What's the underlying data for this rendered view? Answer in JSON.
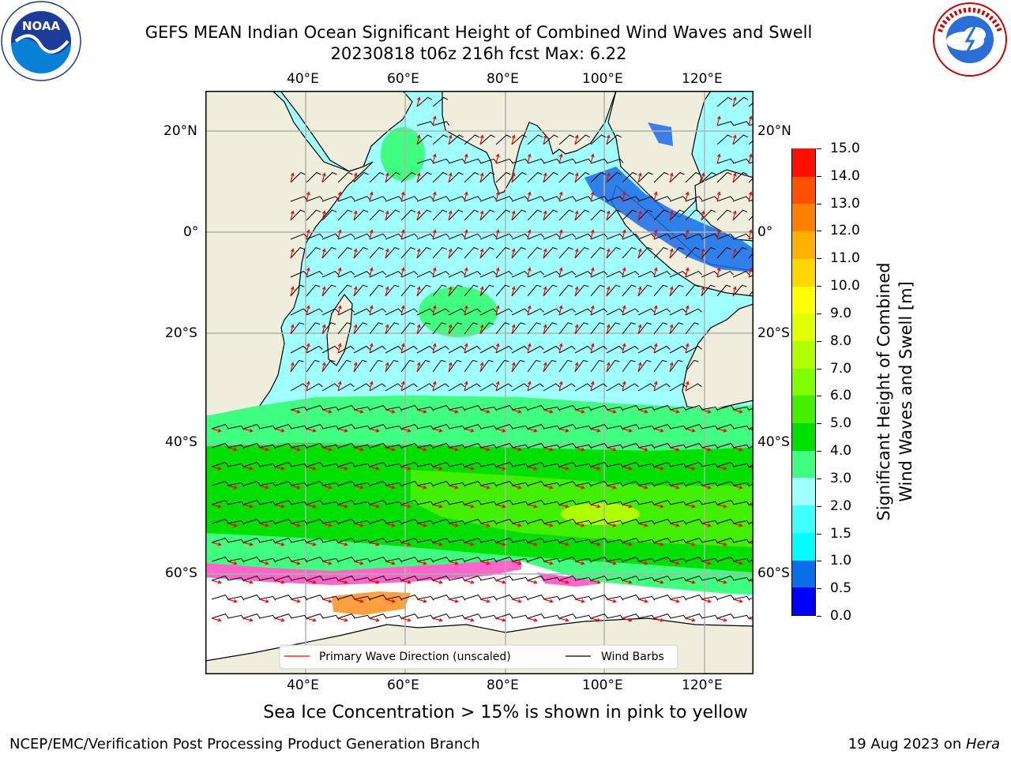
{
  "header": {
    "title_line1": "GEFS MEAN Indian Ocean Significant Height of Combined Wind Waves and Swell",
    "title_line2": "20230818 t06z 216h fcst   Max: 6.22"
  },
  "logos": {
    "left_logo_text": "NOAA",
    "left_ring_text": "NATIONAL OCEANIC AND ATMOSPHERIC ADMINISTRATION · U.S. DEPARTMENT OF COMMERCE",
    "right_ring_text": "NATIONAL WEATHER SERVICE",
    "left_logo_icon": "noaa-logo-icon",
    "right_logo_icon": "nws-logo-icon"
  },
  "map": {
    "lon_ticks": [
      "40°E",
      "60°E",
      "80°E",
      "100°E",
      "120°E"
    ],
    "lat_ticks": [
      "20°N",
      "0°",
      "20°S",
      "40°S",
      "60°S"
    ],
    "legend": {
      "wave_label": "Primary Wave Direction (unscaled)",
      "barb_label": "Wind Barbs",
      "wave_color": "#ff0000",
      "barb_color": "#000000"
    },
    "colors": {
      "land": "#efeedd",
      "ice_background": "#ffffff",
      "grid": "#b0b0b0"
    }
  },
  "colorbar": {
    "label_line1": "Significant Height of Combined",
    "label_line2": "Wind Waves and Swell [m]",
    "ticks": [
      "0.0",
      "0.5",
      "1.0",
      "1.5",
      "2.0",
      "3.0",
      "4.0",
      "5.0",
      "6.0",
      "7.0",
      "8.0",
      "9.0",
      "10.0",
      "11.0",
      "12.0",
      "13.0",
      "14.0",
      "15.0"
    ],
    "colors": [
      "#0000ff",
      "#0a6eea",
      "#00ffff",
      "#40ffff",
      "#a0ffff",
      "#40ff80",
      "#00e000",
      "#40f000",
      "#80ff00",
      "#b0ff00",
      "#e0ff00",
      "#ffff00",
      "#ffd700",
      "#ffb000",
      "#ff8000",
      "#ff5000",
      "#ff1000"
    ]
  },
  "caption": "Sea Ice Concentration > 15% is shown in pink to yellow",
  "footer": {
    "left": "NCEP/EMC/Verification Post Processing Product Generation Branch",
    "right_date": "19 Aug 2023 on ",
    "right_host": "Hera"
  }
}
